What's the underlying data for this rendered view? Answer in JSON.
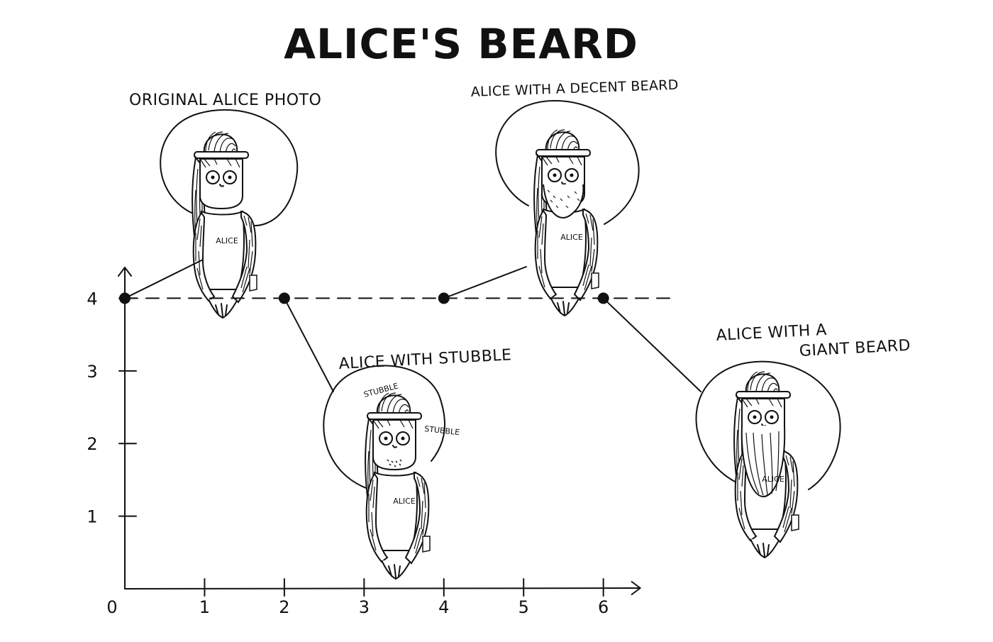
{
  "chart_data": {
    "type": "line",
    "title": "ALICE'S BEARD",
    "xlabel": "",
    "ylabel": "",
    "xlim": [
      0,
      6.5
    ],
    "ylim": [
      0,
      4.6
    ],
    "x_ticks": [
      0,
      1,
      2,
      3,
      4,
      5,
      6
    ],
    "y_ticks": [
      1,
      2,
      3,
      4
    ],
    "line_style": "dashed",
    "grid": false,
    "series": [
      {
        "points": [
          {
            "x": 0,
            "y": 4,
            "label": "ORIGINAL ALICE PHOTO"
          },
          {
            "x": 2,
            "y": 4,
            "label": "ALICE WITH STUBBLE"
          },
          {
            "x": 4,
            "y": 4,
            "label": "ALICE WITH A DECENT BEARD"
          },
          {
            "x": 6,
            "y": 4,
            "label": "ALICE WITH A GIANT BEARD"
          }
        ]
      }
    ],
    "annotations": [
      "STUBBLE",
      "STUBBLE"
    ],
    "figures": [
      {
        "beard": "none",
        "shirt_text": "ALICE"
      },
      {
        "beard": "stubble",
        "shirt_text": "ALICE"
      },
      {
        "beard": "decent",
        "shirt_text": "ALICE"
      },
      {
        "beard": "giant",
        "shirt_text": "ALICE"
      }
    ]
  }
}
